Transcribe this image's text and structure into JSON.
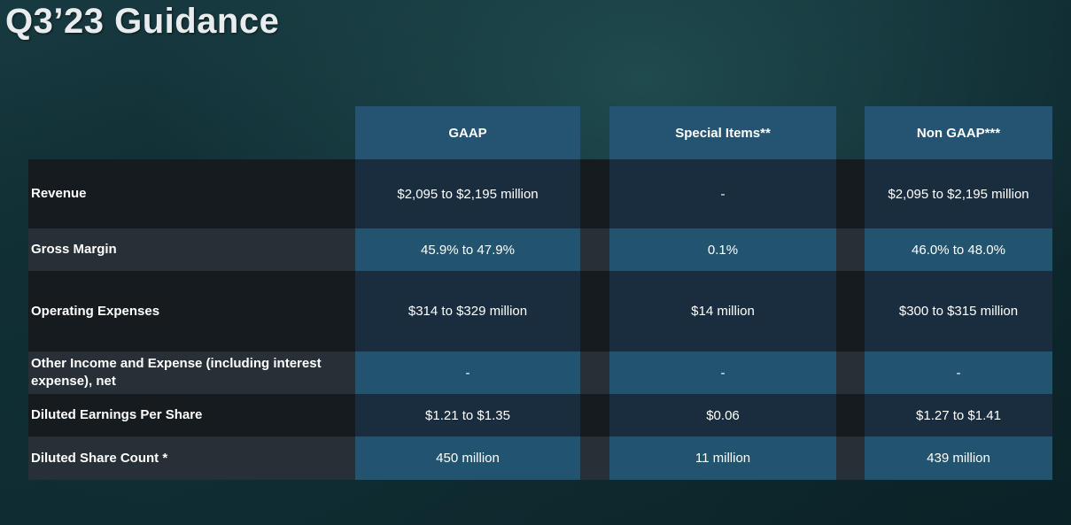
{
  "title": "Q3’23 Guidance",
  "columns": [
    "GAAP",
    "Special Items**",
    "Non GAAP***"
  ],
  "rows": [
    {
      "label": "Revenue",
      "values": [
        "$2,095 to $2,195 million",
        "-",
        "$2,095 to $2,195 million"
      ]
    },
    {
      "label": "Gross Margin",
      "values": [
        "45.9% to 47.9%",
        "0.1%",
        "46.0% to 48.0%"
      ]
    },
    {
      "label": "Operating Expenses",
      "values": [
        "$314 to $329 million",
        "$14 million",
        "$300 to $315 million"
      ]
    },
    {
      "label": "Other Income and Expense (including interest expense), net",
      "values": [
        "-",
        "-",
        "-"
      ]
    },
    {
      "label": "Diluted Earnings Per Share",
      "values": [
        "$1.21 to $1.35",
        "$0.06",
        "$1.27 to $1.41"
      ]
    },
    {
      "label": "Diluted Share Count *",
      "values": [
        "450 million",
        "11 million",
        "439 million"
      ]
    }
  ]
}
